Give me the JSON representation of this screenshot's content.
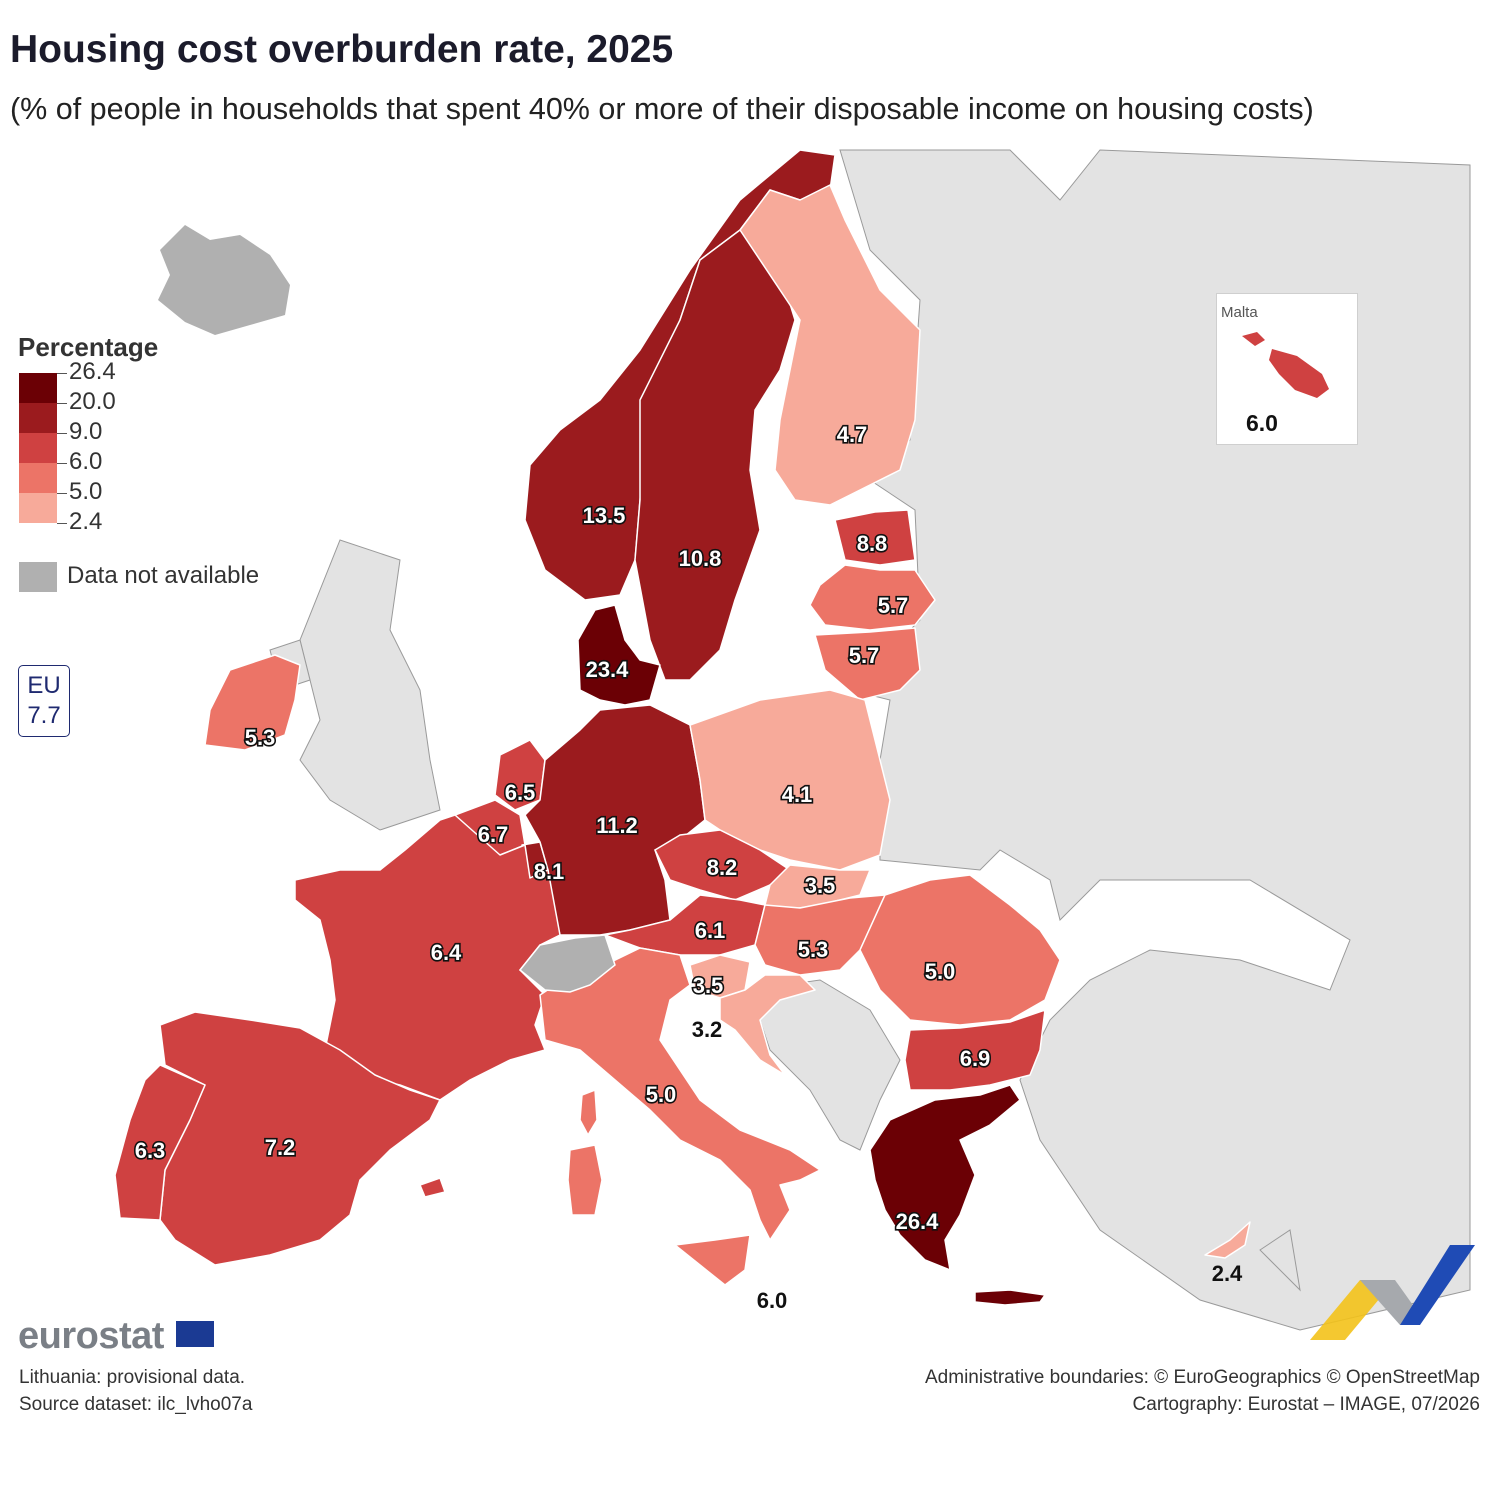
{
  "header": {
    "title": "Housing cost overburden rate, 2025",
    "subtitle": "(% of people in households that spent 40% or more of their disposable income on housing costs)"
  },
  "legend": {
    "title": "Percentage",
    "breaks": [
      "26.4",
      "20.0",
      "9.0",
      "6.0",
      "5.0",
      "2.4"
    ],
    "colors": [
      "#6b0005",
      "#9b1b1e",
      "#cf4141",
      "#ec7467",
      "#f7aa9a"
    ],
    "na_label": "Data not available",
    "na_color": "#b0b0b0"
  },
  "eu_average": {
    "line1": "EU",
    "line2": "7.7"
  },
  "malta_inset": {
    "name": "Malta",
    "value": "6.0"
  },
  "chart_data": {
    "type": "choropleth",
    "values": {
      "Norway": 13.5,
      "Sweden": 10.8,
      "Finland": 4.7,
      "Estonia": 8.8,
      "Latvia": 5.7,
      "Lithuania": 5.7,
      "Denmark": 23.4,
      "Ireland": 5.3,
      "Netherlands": 6.5,
      "Belgium": 6.7,
      "Luxembourg": 8.1,
      "Germany": 11.2,
      "Poland": 4.1,
      "Czechia": 8.2,
      "Slovakia": 3.5,
      "Austria": 6.1,
      "Hungary": 5.3,
      "Romania": 5.0,
      "Slovenia": 3.5,
      "Croatia": 3.2,
      "Bulgaria": 6.9,
      "France": 6.4,
      "Spain": 7.2,
      "Portugal": 6.3,
      "Italy": 5.0,
      "Greece": 26.4,
      "Cyprus": 2.4,
      "Malta": 6.0
    },
    "labels": {
      "Norway": "13.5",
      "Sweden": "10.8",
      "Finland": "4.7",
      "Estonia": "8.8",
      "Latvia": "5.7",
      "Lithuania": "5.7",
      "Denmark": "23.4",
      "Ireland": "5.3",
      "Netherlands": "6.5",
      "Belgium": "6.7",
      "Luxembourg": "8.1",
      "Germany": "11.2",
      "Poland": "4.1",
      "Czechia": "8.2",
      "Slovakia": "3.5",
      "Austria": "6.1",
      "Hungary": "5.3",
      "Romania": "5.0",
      "Slovenia": "3.5",
      "Croatia": "3.2",
      "Bulgaria": "6.9",
      "France": "6.4",
      "Spain": "7.2",
      "Portugal": "6.3",
      "Italy": "5.0",
      "Greece": "26.4",
      "Cyprus": "2.4",
      "Malta": "6.0"
    },
    "not_available": [
      "Iceland",
      "Switzerland"
    ]
  },
  "footer": {
    "brand": "eurostat",
    "note1": "Lithuania: provisional data.",
    "note2": "Source dataset: ilc_lvho07a",
    "credit1": "Administrative boundaries: © EuroGeographics © OpenStreetMap",
    "credit2": "Cartography: Eurostat – IMAGE, 07/2026"
  }
}
